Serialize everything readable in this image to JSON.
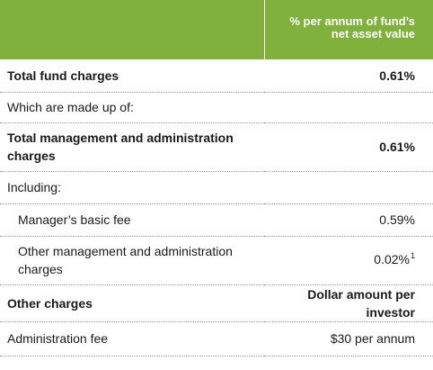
{
  "header": {
    "column_label": "% per annum of fund’s net asset value"
  },
  "rows": {
    "total_fund_charges": {
      "label": "Total fund charges",
      "value": "0.61%"
    },
    "made_up_of": {
      "label": "Which are made up of:"
    },
    "total_mgmt_admin": {
      "label": "Total management and administration charges",
      "value": "0.61%"
    },
    "including": {
      "label": "Including:"
    },
    "managers_fee": {
      "label": "Manager’s basic fee",
      "value": "0.59%"
    },
    "other_mgmt": {
      "label": "Other management and administration charges",
      "value": "0.02%",
      "footnote": "1"
    },
    "other_charges": {
      "label": "Other charges",
      "value": "Dollar amount per investor"
    },
    "admin_fee": {
      "label": "Administration fee",
      "value": "$30 per annum"
    }
  },
  "colors": {
    "header_background": "#7fb13c",
    "header_text": "#ffffff"
  }
}
